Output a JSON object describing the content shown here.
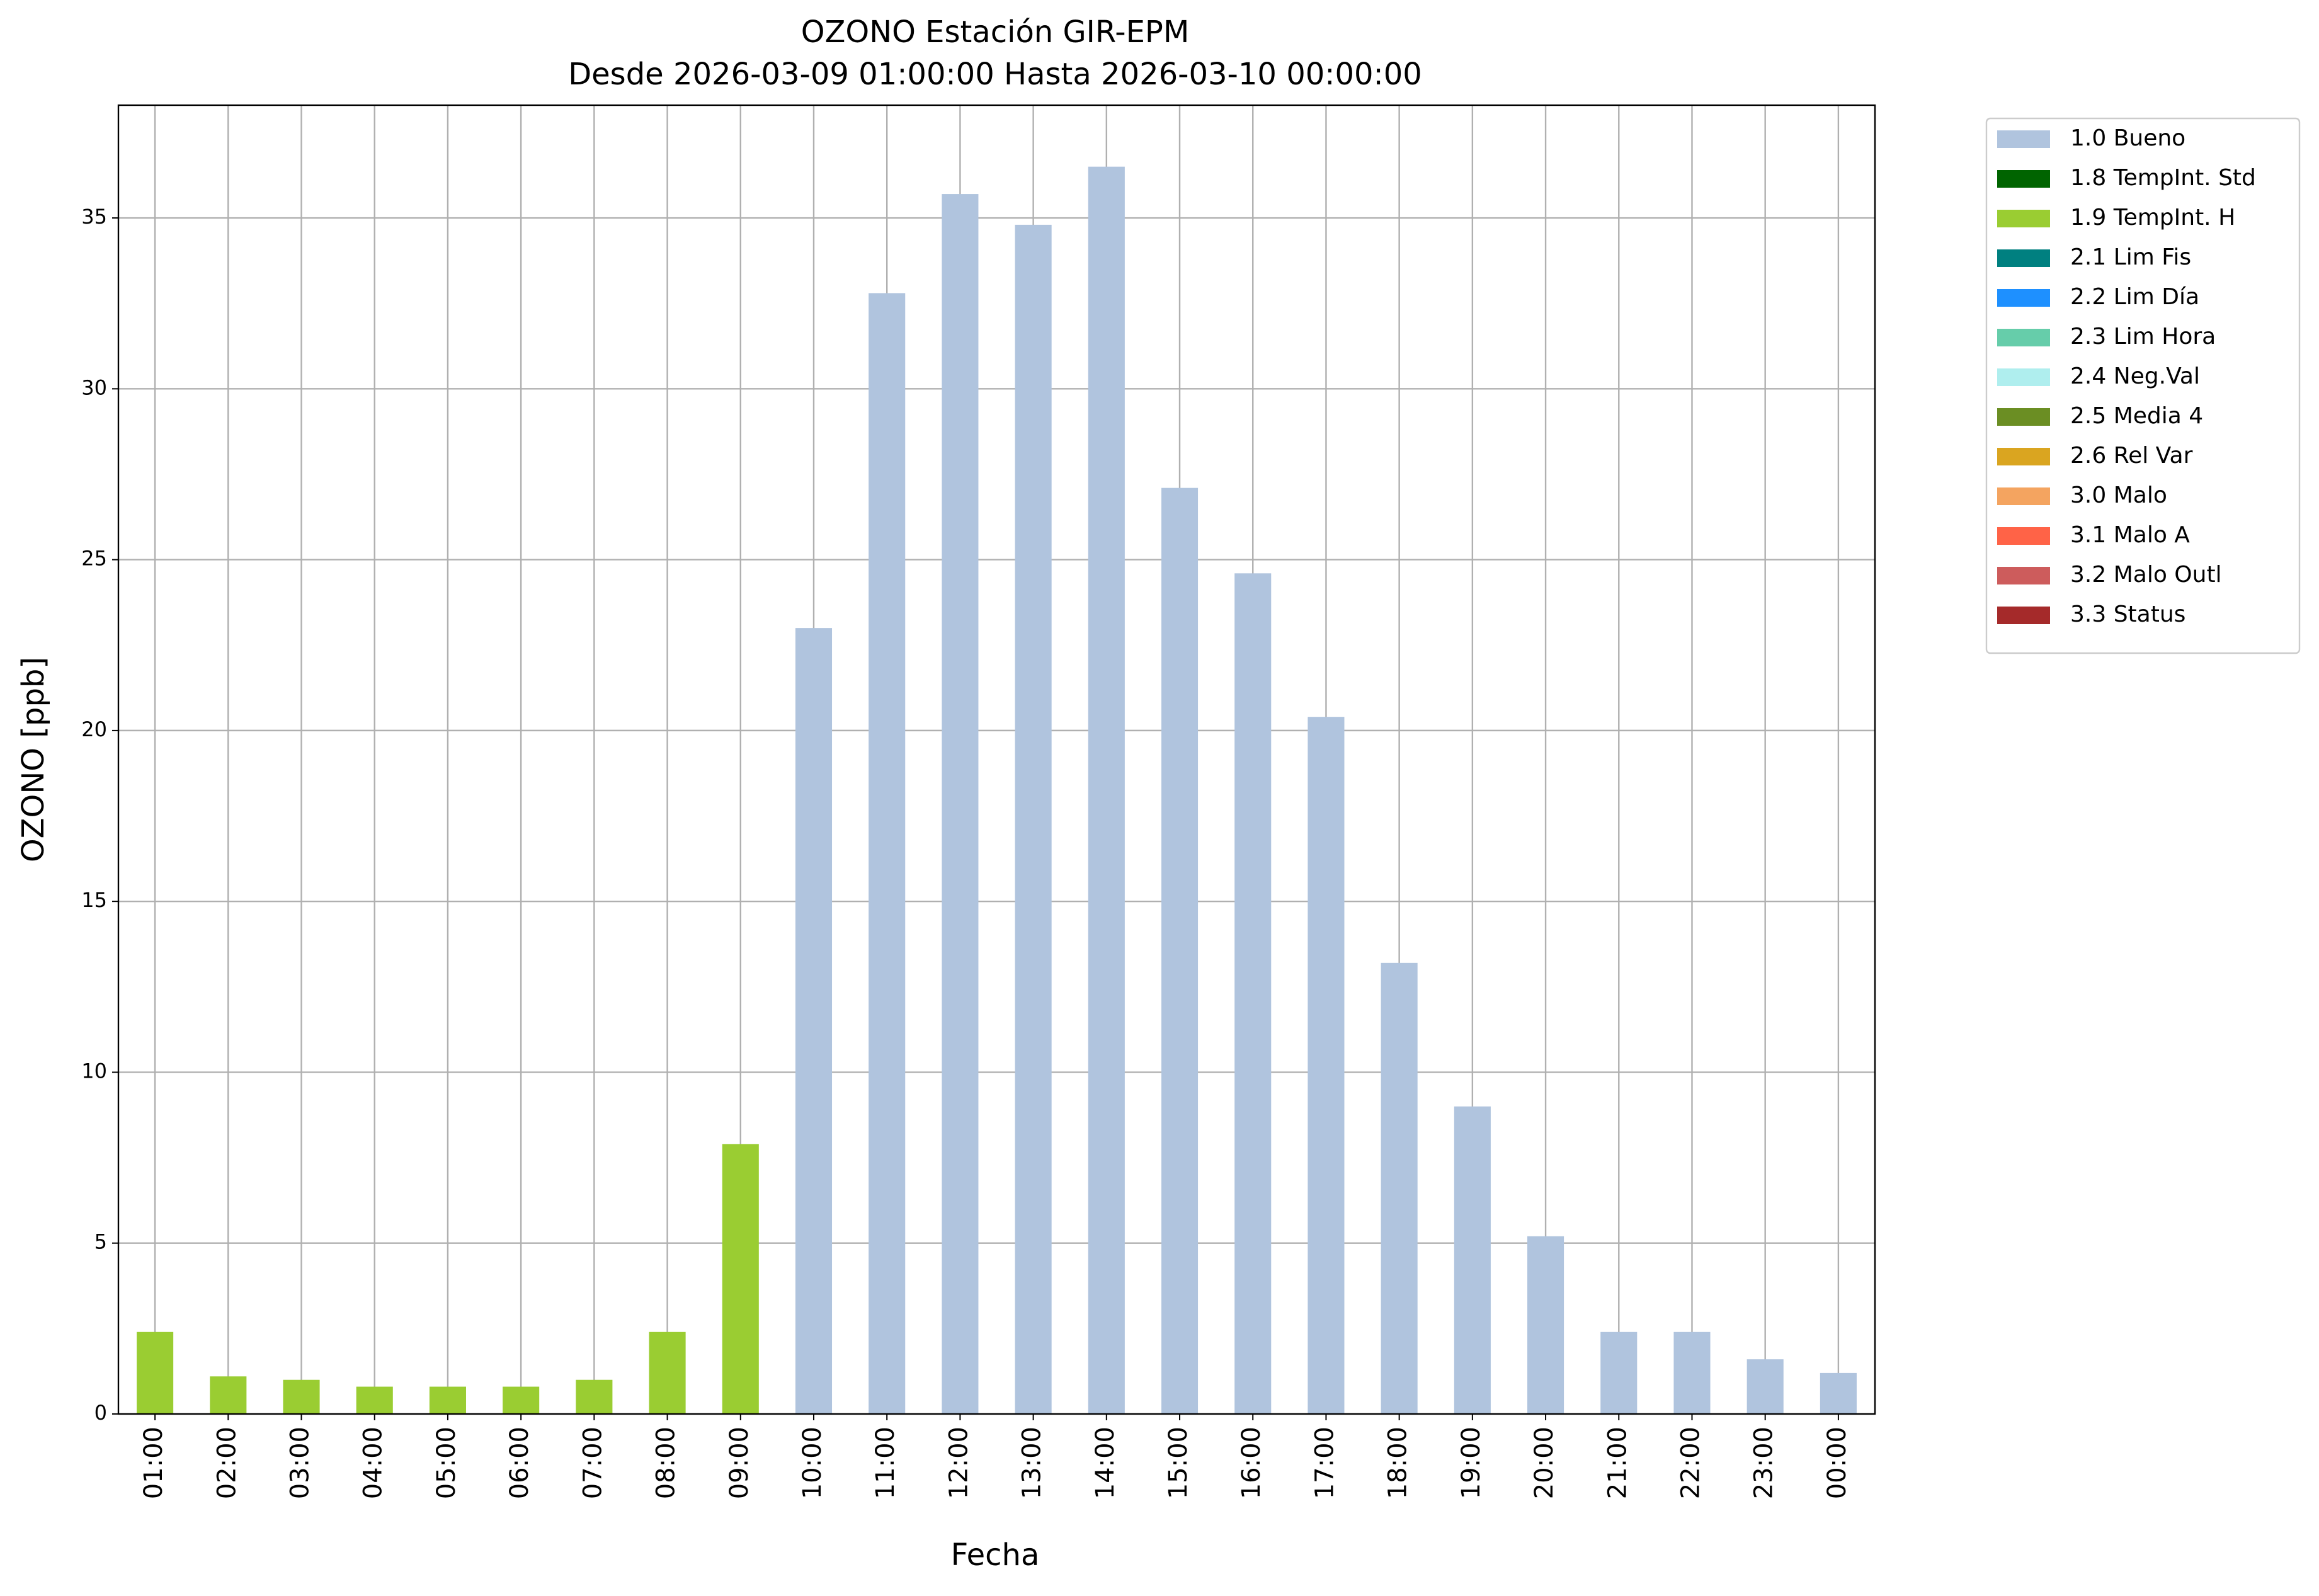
{
  "chart_data": {
    "type": "stacked_bar",
    "title": "OZONO Estación GIR-EPM",
    "subtitle": "Desde 2026-03-09 01:00:00 Hasta 2026-03-10 00:00:00",
    "x_label": "Fecha",
    "y_label": "OZONO [ppb]",
    "categories": [
      "01:00",
      "02:00",
      "03:00",
      "04:00",
      "05:00",
      "06:00",
      "07:00",
      "08:00",
      "09:00",
      "10:00",
      "11:00",
      "12:00",
      "13:00",
      "14:00",
      "15:00",
      "16:00",
      "17:00",
      "18:00",
      "19:00",
      "20:00",
      "21:00",
      "22:00",
      "23:00",
      "00:00"
    ],
    "series": [
      {
        "name": "1.0 Bueno",
        "color": "#b0c4de",
        "values": [
          null,
          null,
          null,
          null,
          null,
          null,
          null,
          null,
          null,
          23.0,
          32.8,
          35.7,
          34.8,
          36.5,
          27.1,
          24.6,
          20.4,
          13.2,
          9.0,
          5.2,
          2.4,
          2.4,
          1.6,
          1.2
        ]
      },
      {
        "name": "1.8 TempInt. Std",
        "color": "#006400",
        "values": [
          null,
          null,
          null,
          null,
          null,
          null,
          null,
          null,
          null,
          null,
          null,
          null,
          null,
          null,
          null,
          null,
          null,
          null,
          null,
          null,
          null,
          null,
          null,
          null
        ]
      },
      {
        "name": "1.9 TempInt. H",
        "color": "#9acd32",
        "values": [
          2.4,
          1.1,
          1.0,
          0.8,
          0.8,
          0.8,
          1.0,
          2.4,
          7.9,
          null,
          null,
          null,
          null,
          null,
          null,
          null,
          null,
          null,
          null,
          null,
          null,
          null,
          null,
          null
        ]
      },
      {
        "name": "2.1 Lim Fis",
        "color": "#008080",
        "values": [
          null,
          null,
          null,
          null,
          null,
          null,
          null,
          null,
          null,
          null,
          null,
          null,
          null,
          null,
          null,
          null,
          null,
          null,
          null,
          null,
          null,
          null,
          null,
          null
        ]
      },
      {
        "name": "2.2 Lim Día",
        "color": "#1e90ff",
        "values": [
          null,
          null,
          null,
          null,
          null,
          null,
          null,
          null,
          null,
          null,
          null,
          null,
          null,
          null,
          null,
          null,
          null,
          null,
          null,
          null,
          null,
          null,
          null,
          null
        ]
      },
      {
        "name": "2.3 Lim Hora",
        "color": "#66cdaa",
        "values": [
          null,
          null,
          null,
          null,
          null,
          null,
          null,
          null,
          null,
          null,
          null,
          null,
          null,
          null,
          null,
          null,
          null,
          null,
          null,
          null,
          null,
          null,
          null,
          null
        ]
      },
      {
        "name": "2.4 Neg.Val",
        "color": "#afeeee",
        "values": [
          null,
          null,
          null,
          null,
          null,
          null,
          null,
          null,
          null,
          null,
          null,
          null,
          null,
          null,
          null,
          null,
          null,
          null,
          null,
          null,
          null,
          null,
          null,
          null
        ]
      },
      {
        "name": "2.5 Media 4",
        "color": "#6b8e23",
        "values": [
          null,
          null,
          null,
          null,
          null,
          null,
          null,
          null,
          null,
          null,
          null,
          null,
          null,
          null,
          null,
          null,
          null,
          null,
          null,
          null,
          null,
          null,
          null,
          null
        ]
      },
      {
        "name": "2.6 Rel Var",
        "color": "#daa520",
        "values": [
          null,
          null,
          null,
          null,
          null,
          null,
          null,
          null,
          null,
          null,
          null,
          null,
          null,
          null,
          null,
          null,
          null,
          null,
          null,
          null,
          null,
          null,
          null,
          null
        ]
      },
      {
        "name": "3.0 Malo",
        "color": "#f4a460",
        "values": [
          null,
          null,
          null,
          null,
          null,
          null,
          null,
          null,
          null,
          null,
          null,
          null,
          null,
          null,
          null,
          null,
          null,
          null,
          null,
          null,
          null,
          null,
          null,
          null
        ]
      },
      {
        "name": "3.1 Malo A",
        "color": "#ff6347",
        "values": [
          null,
          null,
          null,
          null,
          null,
          null,
          null,
          null,
          null,
          null,
          null,
          null,
          null,
          null,
          null,
          null,
          null,
          null,
          null,
          null,
          null,
          null,
          null,
          null
        ]
      },
      {
        "name": "3.2 Malo Outl",
        "color": "#cd5c5c",
        "values": [
          null,
          null,
          null,
          null,
          null,
          null,
          null,
          null,
          null,
          null,
          null,
          null,
          null,
          null,
          null,
          null,
          null,
          null,
          null,
          null,
          null,
          null,
          null,
          null
        ]
      },
      {
        "name": "3.3 Status",
        "color": "#a52a2a",
        "values": [
          null,
          null,
          null,
          null,
          null,
          null,
          null,
          null,
          null,
          null,
          null,
          null,
          null,
          null,
          null,
          null,
          null,
          null,
          null,
          null,
          null,
          null,
          null,
          null
        ]
      }
    ],
    "ylim": [
      0,
      38.3
    ],
    "yticks": [
      0,
      5,
      10,
      15,
      20,
      25,
      30,
      35
    ],
    "grid": true,
    "legend": "outside-right"
  }
}
